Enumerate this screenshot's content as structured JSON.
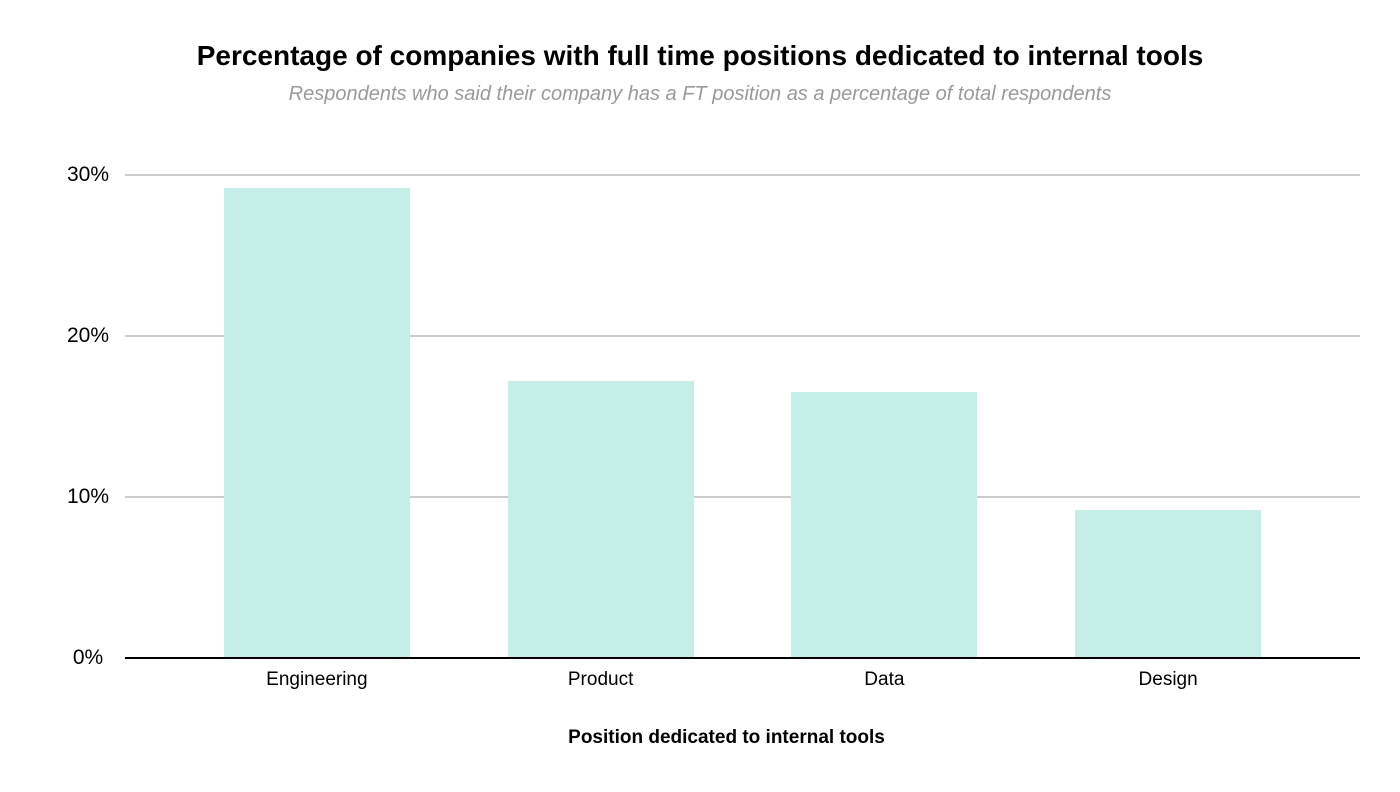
{
  "chart_data": {
    "type": "bar",
    "title": "Percentage of companies with full time positions dedicated to internal tools",
    "subtitle": "Respondents who said their company has a FT position as a percentage of total respondents",
    "categories": [
      "Engineering",
      "Product",
      "Data",
      "Design"
    ],
    "values": [
      29.2,
      17.2,
      16.5,
      9.2
    ],
    "value_unit": "%",
    "xlabel": "Position dedicated to internal tools",
    "ylabel": "",
    "ylim": [
      0,
      30
    ],
    "yticks": [
      0,
      10,
      20,
      30
    ],
    "ytick_labels": [
      "0%",
      "10%",
      "20%",
      "30%"
    ],
    "grid": true,
    "legend_position": "none",
    "colors": {
      "bar_fill": "#c6eee8",
      "gridline": "#cccccc",
      "axis_line": "#000000",
      "title_text": "#000000",
      "subtitle_text": "#999999",
      "label_text": "#000000",
      "background": "#ffffff"
    }
  }
}
